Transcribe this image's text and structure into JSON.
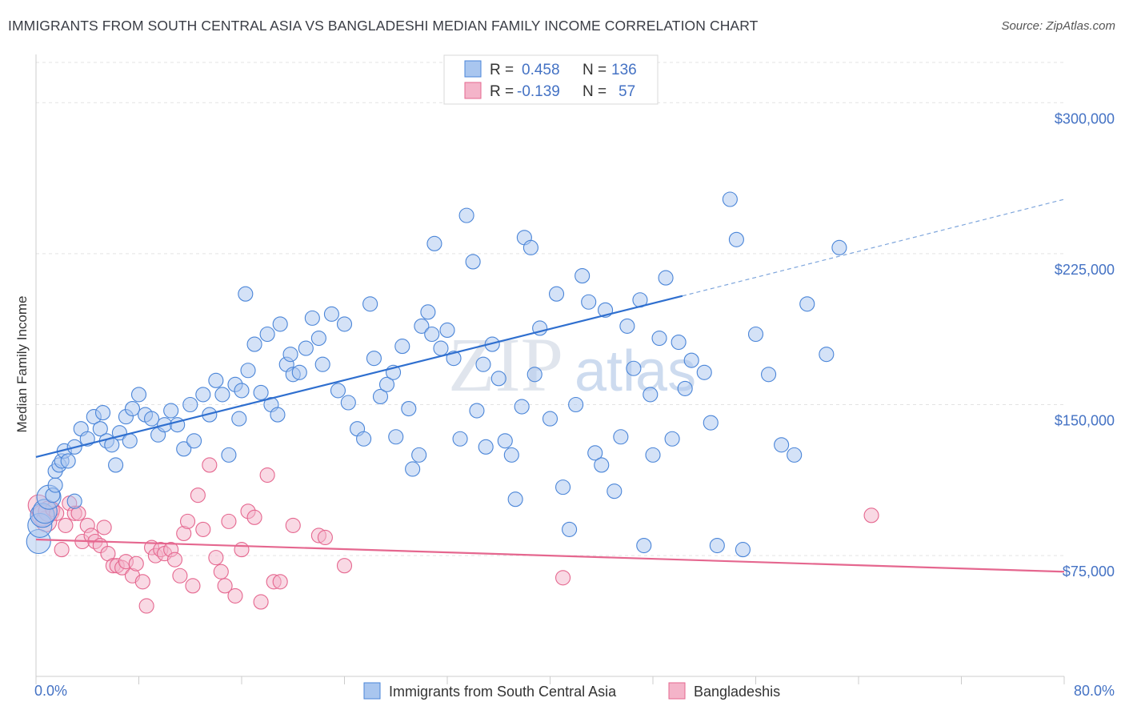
{
  "title": "IMMIGRANTS FROM SOUTH CENTRAL ASIA VS BANGLADESHI MEDIAN FAMILY INCOME CORRELATION CHART",
  "source": "Source: ZipAtlas.com",
  "legend": {
    "r_label": "R =",
    "n_label": "N =",
    "rows": [
      {
        "r": "0.458",
        "n": "136"
      },
      {
        "r": "-0.139",
        "n": "57"
      }
    ]
  },
  "watermark": {
    "zip": "ZIP",
    "atlas": "atlas"
  },
  "colors": {
    "blue": "#4a85d8",
    "blue_fill": "#a9c6ef",
    "pink": "#e5678f",
    "pink_fill": "#f4b4c9",
    "tick": "#4472c4"
  },
  "chart_data": {
    "type": "scatter",
    "xlabel": "",
    "ylabel": "Median Family Income",
    "xlim": [
      0,
      80
    ],
    "ylim": [
      15000,
      320000
    ],
    "x_tick_labels": [
      "0.0%",
      "80.0%"
    ],
    "y_ticks": [
      75000,
      150000,
      225000,
      300000
    ],
    "y_tick_labels": [
      "$75,000",
      "$150,000",
      "$225,000",
      "$300,000"
    ],
    "grid": true,
    "legend_position": "top-center",
    "series": [
      {
        "name": "Immigrants from South Central Asia",
        "color": "#4a85d8",
        "trend": {
          "x0": 0,
          "y0": 124000,
          "x1": 50.3,
          "y1": 204000,
          "dash_to_x": 80,
          "dash_to_y": 252000
        },
        "points": [
          [
            0.2,
            82000
          ],
          [
            0.3,
            90000
          ],
          [
            0.5,
            95000
          ],
          [
            0.7,
            97000
          ],
          [
            1.0,
            104000
          ],
          [
            1.3,
            105000
          ],
          [
            1.5,
            110000
          ],
          [
            1.5,
            117000
          ],
          [
            1.8,
            120000
          ],
          [
            2.0,
            122000
          ],
          [
            2.2,
            127000
          ],
          [
            2.5,
            122000
          ],
          [
            3.0,
            102000
          ],
          [
            3.0,
            129000
          ],
          [
            3.5,
            138000
          ],
          [
            4.0,
            133000
          ],
          [
            4.5,
            144000
          ],
          [
            5.0,
            138000
          ],
          [
            5.2,
            146000
          ],
          [
            5.5,
            132000
          ],
          [
            5.9,
            130000
          ],
          [
            6.2,
            120000
          ],
          [
            6.5,
            136000
          ],
          [
            7.0,
            144000
          ],
          [
            7.5,
            148000
          ],
          [
            7.3,
            132000
          ],
          [
            8.0,
            155000
          ],
          [
            8.5,
            145000
          ],
          [
            9.0,
            143000
          ],
          [
            9.5,
            135000
          ],
          [
            10.0,
            140000
          ],
          [
            10.5,
            147000
          ],
          [
            11.0,
            140000
          ],
          [
            11.5,
            128000
          ],
          [
            12.0,
            150000
          ],
          [
            12.3,
            132000
          ],
          [
            13.0,
            155000
          ],
          [
            13.5,
            145000
          ],
          [
            14.0,
            162000
          ],
          [
            14.5,
            155000
          ],
          [
            15.0,
            125000
          ],
          [
            15.5,
            160000
          ],
          [
            15.8,
            143000
          ],
          [
            16.0,
            157000
          ],
          [
            16.3,
            205000
          ],
          [
            16.5,
            167000
          ],
          [
            17.0,
            180000
          ],
          [
            17.5,
            156000
          ],
          [
            18.0,
            185000
          ],
          [
            18.3,
            150000
          ],
          [
            18.8,
            145000
          ],
          [
            19.0,
            190000
          ],
          [
            19.5,
            170000
          ],
          [
            19.8,
            175000
          ],
          [
            20.0,
            165000
          ],
          [
            20.5,
            166000
          ],
          [
            21.0,
            178000
          ],
          [
            21.5,
            193000
          ],
          [
            22.0,
            183000
          ],
          [
            22.3,
            170000
          ],
          [
            23.0,
            195000
          ],
          [
            23.5,
            157000
          ],
          [
            24.0,
            190000
          ],
          [
            24.3,
            151000
          ],
          [
            25.0,
            138000
          ],
          [
            25.5,
            133000
          ],
          [
            26.0,
            200000
          ],
          [
            26.3,
            173000
          ],
          [
            26.8,
            154000
          ],
          [
            27.3,
            160000
          ],
          [
            27.8,
            166000
          ],
          [
            28.0,
            134000
          ],
          [
            28.5,
            179000
          ],
          [
            29.0,
            148000
          ],
          [
            29.3,
            118000
          ],
          [
            29.8,
            125000
          ],
          [
            30.0,
            189000
          ],
          [
            30.5,
            196000
          ],
          [
            30.8,
            185000
          ],
          [
            31.0,
            230000
          ],
          [
            31.5,
            178000
          ],
          [
            32.0,
            187000
          ],
          [
            32.5,
            173000
          ],
          [
            33.0,
            133000
          ],
          [
            33.5,
            244000
          ],
          [
            34.0,
            221000
          ],
          [
            34.3,
            147000
          ],
          [
            34.8,
            170000
          ],
          [
            35.0,
            129000
          ],
          [
            35.5,
            180000
          ],
          [
            36.0,
            163000
          ],
          [
            36.5,
            132000
          ],
          [
            37.0,
            125000
          ],
          [
            37.3,
            103000
          ],
          [
            37.8,
            149000
          ],
          [
            38.0,
            233000
          ],
          [
            38.5,
            228000
          ],
          [
            38.8,
            165000
          ],
          [
            39.2,
            188000
          ],
          [
            40.0,
            143000
          ],
          [
            40.5,
            205000
          ],
          [
            41.0,
            109000
          ],
          [
            41.5,
            88000
          ],
          [
            42.0,
            150000
          ],
          [
            42.5,
            214000
          ],
          [
            43.0,
            201000
          ],
          [
            43.5,
            126000
          ],
          [
            44.0,
            120000
          ],
          [
            44.3,
            197000
          ],
          [
            45.0,
            107000
          ],
          [
            45.5,
            134000
          ],
          [
            46.0,
            189000
          ],
          [
            46.5,
            168000
          ],
          [
            47.0,
            202000
          ],
          [
            47.3,
            80000
          ],
          [
            47.8,
            155000
          ],
          [
            48.0,
            125000
          ],
          [
            48.5,
            183000
          ],
          [
            49.0,
            213000
          ],
          [
            49.5,
            133000
          ],
          [
            50.0,
            181000
          ],
          [
            50.5,
            158000
          ],
          [
            51.0,
            172000
          ],
          [
            52.0,
            166000
          ],
          [
            52.5,
            141000
          ],
          [
            53.0,
            80000
          ],
          [
            54.0,
            252000
          ],
          [
            54.5,
            232000
          ],
          [
            55.0,
            78000
          ],
          [
            56.0,
            185000
          ],
          [
            57.0,
            165000
          ],
          [
            58.0,
            130000
          ],
          [
            59.0,
            125000
          ],
          [
            60.0,
            200000
          ],
          [
            61.5,
            175000
          ],
          [
            62.5,
            228000
          ]
        ]
      },
      {
        "name": "Bangladeshis",
        "color": "#e5678f",
        "trend": {
          "x0": 0,
          "y0": 83000,
          "x1": 80,
          "y1": 67000
        },
        "points": [
          [
            0.2,
            100000
          ],
          [
            0.5,
            95000
          ],
          [
            0.8,
            92000
          ],
          [
            1.0,
            97000
          ],
          [
            1.3,
            98000
          ],
          [
            1.6,
            96000
          ],
          [
            2.0,
            78000
          ],
          [
            2.3,
            90000
          ],
          [
            2.6,
            101000
          ],
          [
            3.0,
            96000
          ],
          [
            3.3,
            96000
          ],
          [
            3.6,
            82000
          ],
          [
            4.0,
            90000
          ],
          [
            4.3,
            85000
          ],
          [
            4.6,
            82000
          ],
          [
            5.0,
            80000
          ],
          [
            5.3,
            89000
          ],
          [
            5.6,
            76000
          ],
          [
            6.0,
            70000
          ],
          [
            6.3,
            70000
          ],
          [
            6.7,
            69000
          ],
          [
            7.0,
            72000
          ],
          [
            7.5,
            65000
          ],
          [
            7.8,
            71000
          ],
          [
            8.3,
            62000
          ],
          [
            8.6,
            50000
          ],
          [
            9.0,
            79000
          ],
          [
            9.3,
            75000
          ],
          [
            9.7,
            78000
          ],
          [
            10.0,
            76000
          ],
          [
            10.5,
            78000
          ],
          [
            10.8,
            73000
          ],
          [
            11.2,
            65000
          ],
          [
            11.5,
            86000
          ],
          [
            11.8,
            92000
          ],
          [
            12.2,
            60000
          ],
          [
            12.6,
            105000
          ],
          [
            13.0,
            88000
          ],
          [
            13.5,
            120000
          ],
          [
            14.0,
            74000
          ],
          [
            14.4,
            67000
          ],
          [
            14.7,
            60000
          ],
          [
            15.0,
            92000
          ],
          [
            15.5,
            55000
          ],
          [
            16.0,
            78000
          ],
          [
            16.5,
            97000
          ],
          [
            17.0,
            94000
          ],
          [
            17.5,
            52000
          ],
          [
            18.0,
            115000
          ],
          [
            18.5,
            62000
          ],
          [
            19.0,
            62000
          ],
          [
            20.0,
            90000
          ],
          [
            22.0,
            85000
          ],
          [
            22.5,
            84000
          ],
          [
            24.0,
            70000
          ],
          [
            41.0,
            64000
          ],
          [
            65.0,
            95000
          ]
        ]
      }
    ]
  },
  "bottom_legend": [
    "Immigrants from South Central Asia",
    "Bangladeshis"
  ]
}
